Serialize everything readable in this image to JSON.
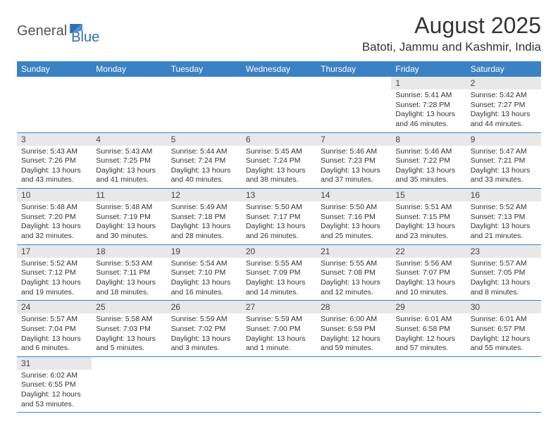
{
  "brand": {
    "part1": "General",
    "part2": "Blue"
  },
  "title": "August 2025",
  "location": "Batoti, Jammu and Kashmir, India",
  "colors": {
    "header_bg": "#3b82c4",
    "header_fg": "#ffffff",
    "daynum_bg": "#e8e8e8",
    "row_border": "#3b82c4",
    "text": "#333333",
    "brand_accent": "#2d6fb5"
  },
  "weekdays": [
    "Sunday",
    "Monday",
    "Tuesday",
    "Wednesday",
    "Thursday",
    "Friday",
    "Saturday"
  ],
  "weeks": [
    [
      null,
      null,
      null,
      null,
      null,
      {
        "n": "1",
        "sr": "5:41 AM",
        "ss": "7:28 PM",
        "dl": "13 hours and 46 minutes."
      },
      {
        "n": "2",
        "sr": "5:42 AM",
        "ss": "7:27 PM",
        "dl": "13 hours and 44 minutes."
      }
    ],
    [
      {
        "n": "3",
        "sr": "5:43 AM",
        "ss": "7:26 PM",
        "dl": "13 hours and 43 minutes."
      },
      {
        "n": "4",
        "sr": "5:43 AM",
        "ss": "7:25 PM",
        "dl": "13 hours and 41 minutes."
      },
      {
        "n": "5",
        "sr": "5:44 AM",
        "ss": "7:24 PM",
        "dl": "13 hours and 40 minutes."
      },
      {
        "n": "6",
        "sr": "5:45 AM",
        "ss": "7:24 PM",
        "dl": "13 hours and 38 minutes."
      },
      {
        "n": "7",
        "sr": "5:46 AM",
        "ss": "7:23 PM",
        "dl": "13 hours and 37 minutes."
      },
      {
        "n": "8",
        "sr": "5:46 AM",
        "ss": "7:22 PM",
        "dl": "13 hours and 35 minutes."
      },
      {
        "n": "9",
        "sr": "5:47 AM",
        "ss": "7:21 PM",
        "dl": "13 hours and 33 minutes."
      }
    ],
    [
      {
        "n": "10",
        "sr": "5:48 AM",
        "ss": "7:20 PM",
        "dl": "13 hours and 32 minutes."
      },
      {
        "n": "11",
        "sr": "5:48 AM",
        "ss": "7:19 PM",
        "dl": "13 hours and 30 minutes."
      },
      {
        "n": "12",
        "sr": "5:49 AM",
        "ss": "7:18 PM",
        "dl": "13 hours and 28 minutes."
      },
      {
        "n": "13",
        "sr": "5:50 AM",
        "ss": "7:17 PM",
        "dl": "13 hours and 26 minutes."
      },
      {
        "n": "14",
        "sr": "5:50 AM",
        "ss": "7:16 PM",
        "dl": "13 hours and 25 minutes."
      },
      {
        "n": "15",
        "sr": "5:51 AM",
        "ss": "7:15 PM",
        "dl": "13 hours and 23 minutes."
      },
      {
        "n": "16",
        "sr": "5:52 AM",
        "ss": "7:13 PM",
        "dl": "13 hours and 21 minutes."
      }
    ],
    [
      {
        "n": "17",
        "sr": "5:52 AM",
        "ss": "7:12 PM",
        "dl": "13 hours and 19 minutes."
      },
      {
        "n": "18",
        "sr": "5:53 AM",
        "ss": "7:11 PM",
        "dl": "13 hours and 18 minutes."
      },
      {
        "n": "19",
        "sr": "5:54 AM",
        "ss": "7:10 PM",
        "dl": "13 hours and 16 minutes."
      },
      {
        "n": "20",
        "sr": "5:55 AM",
        "ss": "7:09 PM",
        "dl": "13 hours and 14 minutes."
      },
      {
        "n": "21",
        "sr": "5:55 AM",
        "ss": "7:08 PM",
        "dl": "13 hours and 12 minutes."
      },
      {
        "n": "22",
        "sr": "5:56 AM",
        "ss": "7:07 PM",
        "dl": "13 hours and 10 minutes."
      },
      {
        "n": "23",
        "sr": "5:57 AM",
        "ss": "7:05 PM",
        "dl": "13 hours and 8 minutes."
      }
    ],
    [
      {
        "n": "24",
        "sr": "5:57 AM",
        "ss": "7:04 PM",
        "dl": "13 hours and 6 minutes."
      },
      {
        "n": "25",
        "sr": "5:58 AM",
        "ss": "7:03 PM",
        "dl": "13 hours and 5 minutes."
      },
      {
        "n": "26",
        "sr": "5:59 AM",
        "ss": "7:02 PM",
        "dl": "13 hours and 3 minutes."
      },
      {
        "n": "27",
        "sr": "5:59 AM",
        "ss": "7:00 PM",
        "dl": "13 hours and 1 minute."
      },
      {
        "n": "28",
        "sr": "6:00 AM",
        "ss": "6:59 PM",
        "dl": "12 hours and 59 minutes."
      },
      {
        "n": "29",
        "sr": "6:01 AM",
        "ss": "6:58 PM",
        "dl": "12 hours and 57 minutes."
      },
      {
        "n": "30",
        "sr": "6:01 AM",
        "ss": "6:57 PM",
        "dl": "12 hours and 55 minutes."
      }
    ],
    [
      {
        "n": "31",
        "sr": "6:02 AM",
        "ss": "6:55 PM",
        "dl": "12 hours and 53 minutes."
      },
      null,
      null,
      null,
      null,
      null,
      null
    ]
  ],
  "labels": {
    "sunrise": "Sunrise:",
    "sunset": "Sunset:",
    "daylight": "Daylight:"
  }
}
